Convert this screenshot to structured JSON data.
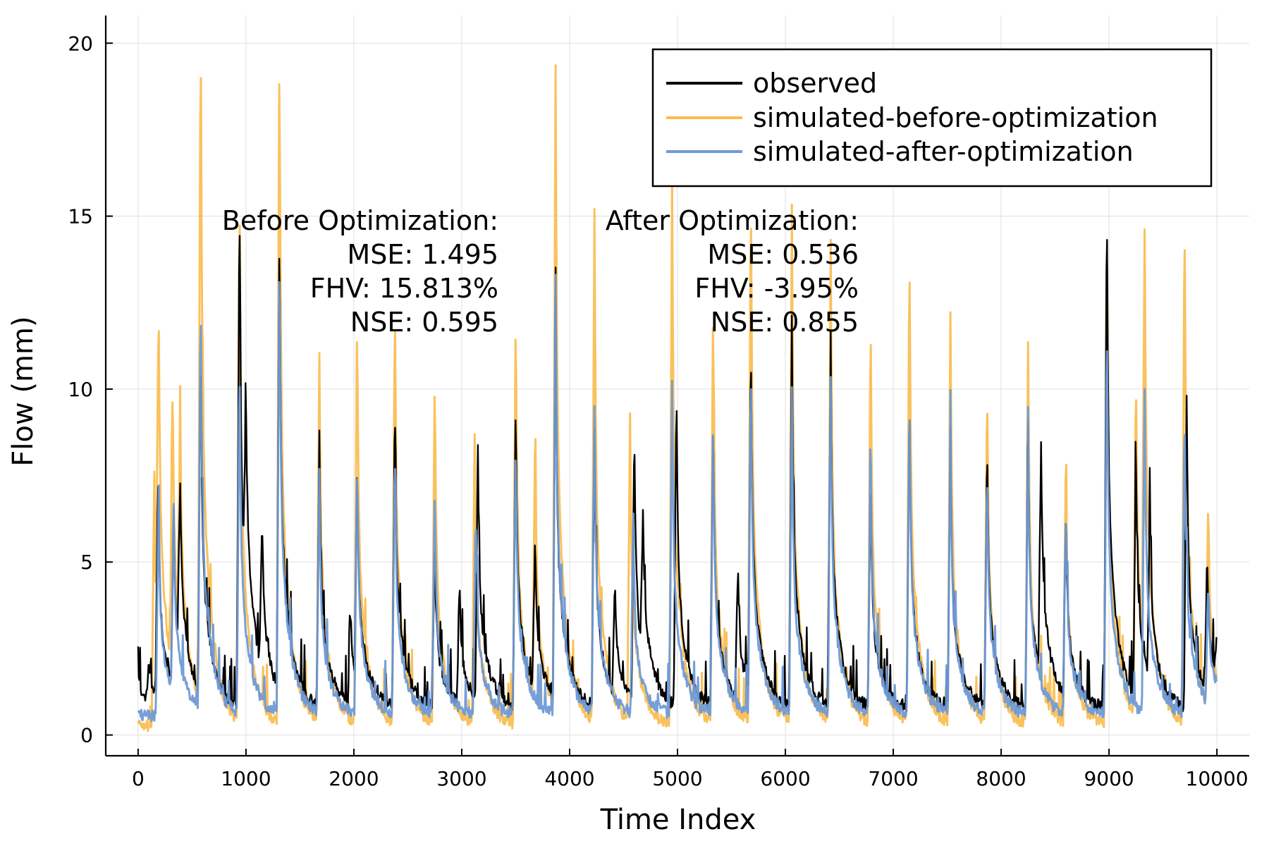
{
  "chart_data": {
    "type": "line",
    "xlabel": "Time Index",
    "ylabel": "Flow (mm)",
    "xlim": [
      -300,
      10300
    ],
    "ylim": [
      -0.6,
      20.8
    ],
    "xticks": [
      0,
      1000,
      2000,
      3000,
      4000,
      5000,
      6000,
      7000,
      8000,
      9000,
      10000
    ],
    "yticks": [
      0,
      5,
      10,
      15,
      20
    ],
    "grid": true,
    "legend_position": "top-right",
    "series": [
      {
        "name": "observed",
        "color": "#000000",
        "peaks": [
          [
            0,
            1.1
          ],
          [
            100,
            1.3
          ],
          [
            185,
            6.6
          ],
          [
            330,
            5.2
          ],
          [
            390,
            5.1
          ],
          [
            580,
            10.2
          ],
          [
            940,
            14.8
          ],
          [
            1000,
            5.4
          ],
          [
            1150,
            4.4
          ],
          [
            1310,
            13.6
          ],
          [
            1680,
            7.9
          ],
          [
            1970,
            2.7
          ],
          [
            2030,
            6.5
          ],
          [
            2380,
            9.0
          ],
          [
            2750,
            4.8
          ],
          [
            2980,
            3.4
          ],
          [
            3150,
            7.4
          ],
          [
            3500,
            9.1
          ],
          [
            3680,
            4.5
          ],
          [
            3870,
            11.1
          ],
          [
            4230,
            7.9
          ],
          [
            4420,
            3.3
          ],
          [
            4600,
            8.0
          ],
          [
            4680,
            4.0
          ],
          [
            4990,
            9.3
          ],
          [
            5330,
            8.6
          ],
          [
            5560,
            3.9
          ],
          [
            5680,
            10.0
          ],
          [
            6060,
            11.3
          ],
          [
            6420,
            10.7
          ],
          [
            6790,
            6.6
          ],
          [
            7150,
            9.0
          ],
          [
            7530,
            8.1
          ],
          [
            7870,
            7.8
          ],
          [
            8250,
            8.4
          ],
          [
            8370,
            6.8
          ],
          [
            8600,
            5.6
          ],
          [
            8980,
            15.0
          ],
          [
            9250,
            7.1
          ],
          [
            9380,
            5.2
          ],
          [
            9720,
            8.9
          ],
          [
            9910,
            4.0
          ],
          [
            10000,
            1.2
          ]
        ],
        "baseflow": 0.6
      },
      {
        "name": "simulated-before-optimization",
        "color": "#f9b233",
        "peaks": [
          [
            0,
            0
          ],
          [
            150,
            7.2
          ],
          [
            190,
            10.1
          ],
          [
            320,
            8.3
          ],
          [
            390,
            6.4
          ],
          [
            580,
            19.9
          ],
          [
            940,
            15.6
          ],
          [
            1310,
            19.9
          ],
          [
            1680,
            10.7
          ],
          [
            2030,
            12.0
          ],
          [
            2380,
            12.3
          ],
          [
            2750,
            10.3
          ],
          [
            3120,
            8.4
          ],
          [
            3500,
            12.2
          ],
          [
            3680,
            7.5
          ],
          [
            3870,
            18.7
          ],
          [
            4230,
            14.7
          ],
          [
            4560,
            8.8
          ],
          [
            4950,
            15.8
          ],
          [
            5330,
            12.4
          ],
          [
            5680,
            15.8
          ],
          [
            6060,
            14.9
          ],
          [
            6420,
            14.0
          ],
          [
            6790,
            11.9
          ],
          [
            7150,
            13.9
          ],
          [
            7530,
            12.0
          ],
          [
            7870,
            9.9
          ],
          [
            8250,
            11.1
          ],
          [
            8600,
            7.6
          ],
          [
            8980,
            14.6
          ],
          [
            9250,
            10.0
          ],
          [
            9330,
            12.3
          ],
          [
            9700,
            14.9
          ],
          [
            9920,
            6.1
          ],
          [
            10000,
            0.2
          ]
        ],
        "baseflow": 0.1
      },
      {
        "name": "simulated-after-optimization",
        "color": "#6f9ad6",
        "peaks": [
          [
            0,
            0
          ],
          [
            190,
            6.5
          ],
          [
            330,
            5.4
          ],
          [
            580,
            12.3
          ],
          [
            940,
            10.2
          ],
          [
            1310,
            13.6
          ],
          [
            1680,
            7.0
          ],
          [
            2030,
            7.4
          ],
          [
            2380,
            7.7
          ],
          [
            2750,
            6.5
          ],
          [
            3130,
            5.9
          ],
          [
            3500,
            8.1
          ],
          [
            3870,
            12.7
          ],
          [
            4230,
            8.8
          ],
          [
            4590,
            5.6
          ],
          [
            4950,
            9.5
          ],
          [
            5330,
            8.6
          ],
          [
            5680,
            10.2
          ],
          [
            6060,
            9.3
          ],
          [
            6420,
            9.6
          ],
          [
            6790,
            7.8
          ],
          [
            7150,
            9.2
          ],
          [
            7530,
            8.0
          ],
          [
            7870,
            7.2
          ],
          [
            8250,
            8.2
          ],
          [
            8600,
            6.0
          ],
          [
            8980,
            11.4
          ],
          [
            9330,
            9.3
          ],
          [
            9700,
            9.0
          ],
          [
            9920,
            3.6
          ],
          [
            10000,
            0.3
          ]
        ],
        "baseflow": 0.4
      }
    ],
    "annotations": [
      {
        "lines": [
          "Before Optimization:",
          "MSE: 1.495",
          "FHV: 15.813%",
          "NSE: 0.595"
        ]
      },
      {
        "lines": [
          "After Optimization:",
          "MSE: 0.536",
          "FHV: -3.95%",
          "NSE: 0.855"
        ]
      }
    ]
  }
}
